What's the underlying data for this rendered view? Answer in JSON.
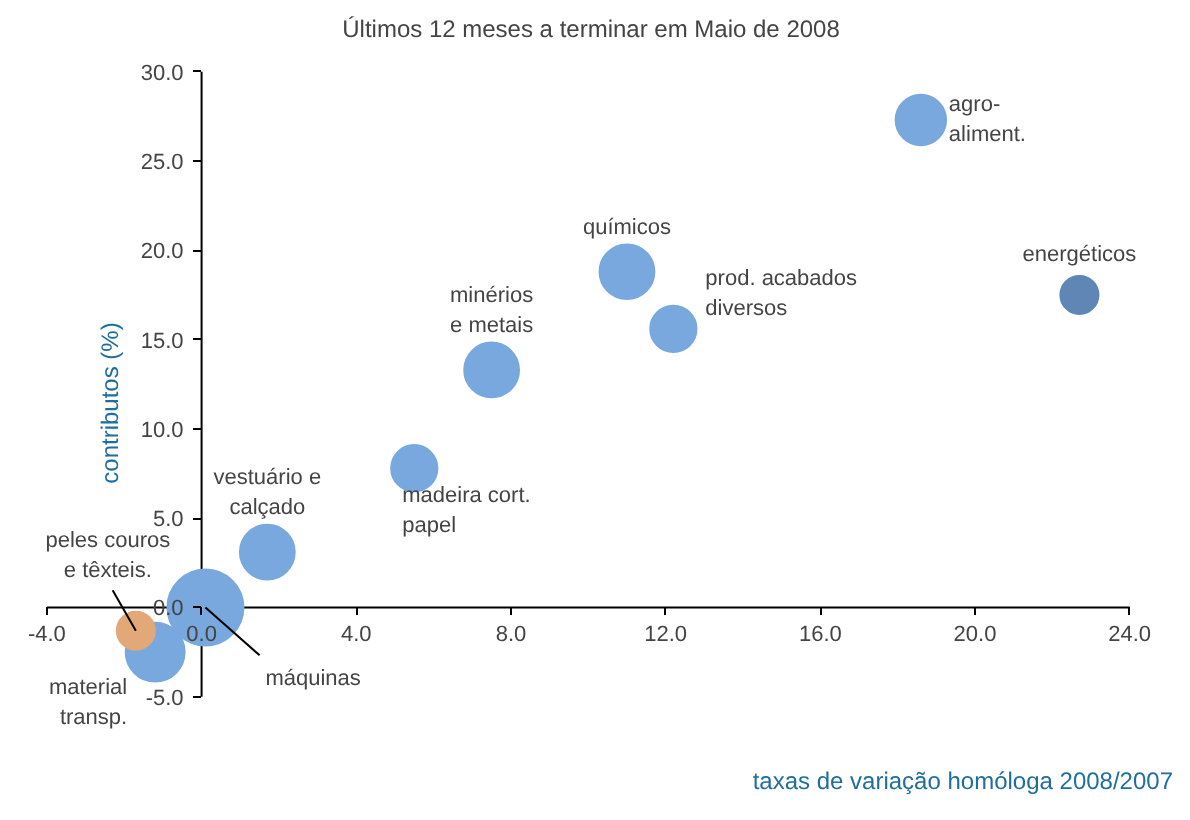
{
  "chart_data": {
    "type": "bubble",
    "title": "Últimos 12 meses a terminar em Maio de 2008",
    "xlabel": "taxas de variação homóloga 2008/2007",
    "ylabel": "contributos (%)",
    "x": [
      18.6,
      22.7,
      11.0,
      12.2,
      7.5,
      5.5,
      1.7,
      0.1,
      -1.2,
      -1.7
    ],
    "values": [
      27.3,
      17.5,
      18.8,
      15.6,
      13.3,
      7.8,
      3.1,
      0.0,
      -2.5,
      -1.3
    ],
    "sizes": [
      0.44,
      0.25,
      0.52,
      0.37,
      0.52,
      0.37,
      0.52,
      1,
      0.6,
      0.25
    ],
    "colors": [
      "#78a8de",
      "#5f86b4",
      "#78a8de",
      "#78a8de",
      "#78a8de",
      "#78a8de",
      "#78a8de",
      "#78a8de",
      "#78a8de",
      "#e3a878"
    ],
    "xlim": [
      -4,
      24
    ],
    "ylim": [
      -5,
      30
    ],
    "xticks": [
      {
        "value": -4,
        "label": "-4.0"
      },
      {
        "value": 0,
        "label": "0.0"
      },
      {
        "value": 4,
        "label": "4.0"
      },
      {
        "value": 8,
        "label": "8.0"
      },
      {
        "value": 12,
        "label": "12.0"
      },
      {
        "value": 16,
        "label": "16.0"
      },
      {
        "value": 20,
        "label": "20.0"
      },
      {
        "value": 24,
        "label": "24.0"
      }
    ],
    "yticks": [
      {
        "value": -5,
        "label": "-5.0"
      },
      {
        "value": 0,
        "label": "0.0"
      },
      {
        "value": 5,
        "label": "5.0"
      },
      {
        "value": 10,
        "label": "10.0"
      },
      {
        "value": 15,
        "label": "15.0"
      },
      {
        "value": 20,
        "label": "20.0"
      },
      {
        "value": 25,
        "label": "25.0"
      },
      {
        "value": 30,
        "label": "30.0"
      }
    ],
    "grid": false,
    "annotations": [
      {
        "text": "agro-\naliment.",
        "x": 18.6,
        "y": 27.3
      },
      {
        "text": "energéticos",
        "x": 22.7,
        "y": 17.5
      },
      {
        "text": "químicos",
        "x": 11.0,
        "y": 18.8
      },
      {
        "text": "prod. acabados\ndiversos",
        "x": 12.2,
        "y": 15.6
      },
      {
        "text": "minérios\ne metais",
        "x": 7.5,
        "y": 13.3
      },
      {
        "text": "madeira cort.\npapel",
        "x": 5.5,
        "y": 7.8
      },
      {
        "text": "vestuário e\ncalçado",
        "x": 1.7,
        "y": 3.1
      },
      {
        "text": "máquinas",
        "x": 0.1,
        "y": 0.0
      },
      {
        "text": "material\ntransp.",
        "x": -1.2,
        "y": -2.5
      },
      {
        "text": "peles couros\ne têxteis.",
        "x": -1.7,
        "y": -1.3
      }
    ]
  }
}
